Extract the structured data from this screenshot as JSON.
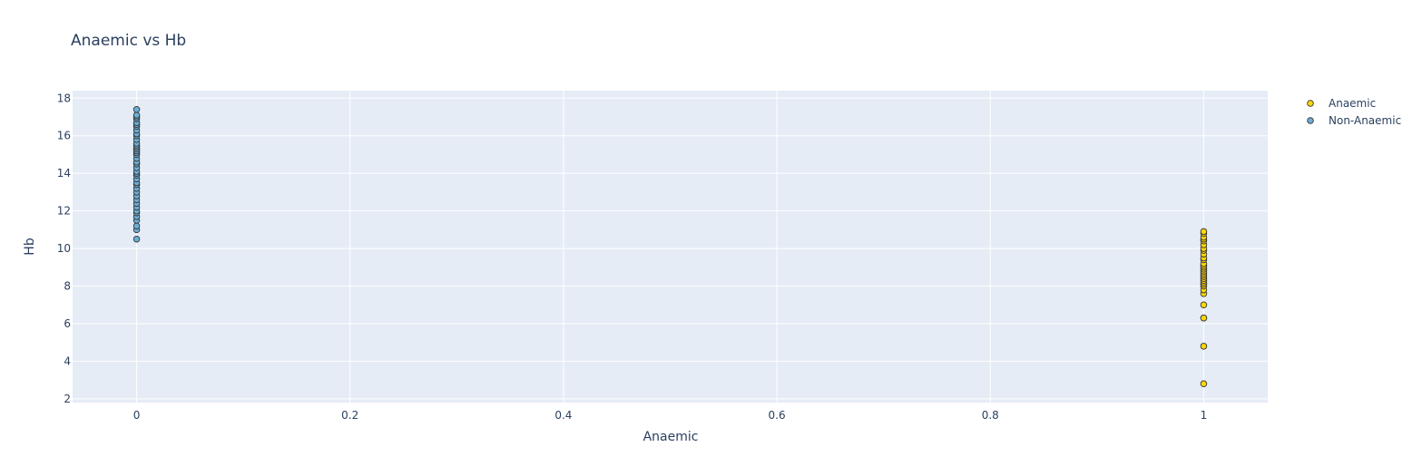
{
  "chart_data": {
    "type": "scatter",
    "title": "Anaemic vs Hb",
    "xlabel": "Anaemic",
    "ylabel": "Hb",
    "xlim": [
      -0.06,
      1.06
    ],
    "ylim": [
      1.8,
      18.4
    ],
    "xticks": [
      0,
      0.2,
      0.4,
      0.6,
      0.8,
      1
    ],
    "xtick_labels": [
      "0",
      "0.2",
      "0.4",
      "0.6",
      "0.8",
      "1"
    ],
    "yticks": [
      2,
      4,
      6,
      8,
      10,
      12,
      14,
      16,
      18
    ],
    "ytick_labels": [
      "2",
      "4",
      "6",
      "8",
      "10",
      "12",
      "14",
      "16",
      "18"
    ],
    "grid": true,
    "legend_position": "top-right",
    "plot_background": "#e5ecf6",
    "series": [
      {
        "name": "Anaemic",
        "color": "#ffd700",
        "x": [
          1,
          1,
          1,
          1,
          1,
          1,
          1,
          1,
          1,
          1,
          1,
          1,
          1,
          1,
          1,
          1,
          1,
          1,
          1,
          1,
          1,
          1,
          1,
          1,
          1,
          1,
          1,
          1,
          1,
          1,
          1
        ],
        "y": [
          2.8,
          4.8,
          6.3,
          6.3,
          7.0,
          7.6,
          7.8,
          8.0,
          8.1,
          8.2,
          8.3,
          8.4,
          8.5,
          8.6,
          8.7,
          8.8,
          8.9,
          9.0,
          9.1,
          9.2,
          9.4,
          9.5,
          9.7,
          9.9,
          10.0,
          10.2,
          10.4,
          10.5,
          10.6,
          10.8,
          10.9
        ]
      },
      {
        "name": "Non-Anaemic",
        "color": "#6baed6",
        "x": [
          0,
          0,
          0,
          0,
          0,
          0,
          0,
          0,
          0,
          0,
          0,
          0,
          0,
          0,
          0,
          0,
          0,
          0,
          0,
          0,
          0,
          0,
          0,
          0,
          0,
          0,
          0,
          0,
          0,
          0,
          0,
          0,
          0,
          0,
          0,
          0,
          0,
          0,
          0,
          0,
          0
        ],
        "y": [
          10.5,
          11.0,
          11.2,
          11.5,
          11.7,
          11.9,
          12.0,
          12.2,
          12.4,
          12.6,
          12.8,
          13.0,
          13.2,
          13.4,
          13.5,
          13.7,
          13.9,
          14.0,
          14.1,
          14.3,
          14.5,
          14.6,
          14.8,
          15.0,
          15.1,
          15.2,
          15.3,
          15.4,
          15.5,
          15.6,
          15.8,
          16.0,
          16.1,
          16.3,
          16.5,
          16.6,
          16.7,
          16.9,
          17.0,
          17.1,
          17.4
        ]
      }
    ]
  }
}
